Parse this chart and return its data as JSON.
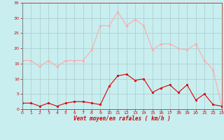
{
  "x": [
    0,
    1,
    2,
    3,
    4,
    5,
    6,
    7,
    8,
    9,
    10,
    11,
    12,
    13,
    14,
    15,
    16,
    17,
    18,
    19,
    20,
    21,
    22,
    23
  ],
  "vent_moyen": [
    2,
    2,
    1,
    2,
    1,
    2,
    2.5,
    2.5,
    2,
    1.5,
    7.5,
    11,
    11.5,
    9.5,
    10,
    5.5,
    7,
    8,
    5.5,
    8,
    3,
    5,
    1.5,
    1
  ],
  "rafales": [
    16,
    16,
    14,
    16,
    14,
    16,
    16,
    16,
    19.5,
    27.5,
    27.5,
    32,
    27.5,
    29.5,
    27.5,
    19.5,
    21.5,
    21.5,
    20,
    19.5,
    21.5,
    16,
    13,
    1
  ],
  "color_moyen": "#dd0000",
  "color_rafales": "#ffaaaa",
  "bg_color": "#c8eef0",
  "grid_color": "#aacccc",
  "xlabel": "Vent moyen/en rafales ( km/h )",
  "ylim": [
    0,
    35
  ],
  "yticks": [
    0,
    5,
    10,
    15,
    20,
    25,
    30,
    35
  ],
  "xlim": [
    0,
    23
  ],
  "xticks": [
    0,
    1,
    2,
    3,
    4,
    5,
    6,
    7,
    8,
    9,
    10,
    11,
    12,
    13,
    14,
    15,
    16,
    17,
    18,
    19,
    20,
    21,
    22,
    23
  ]
}
